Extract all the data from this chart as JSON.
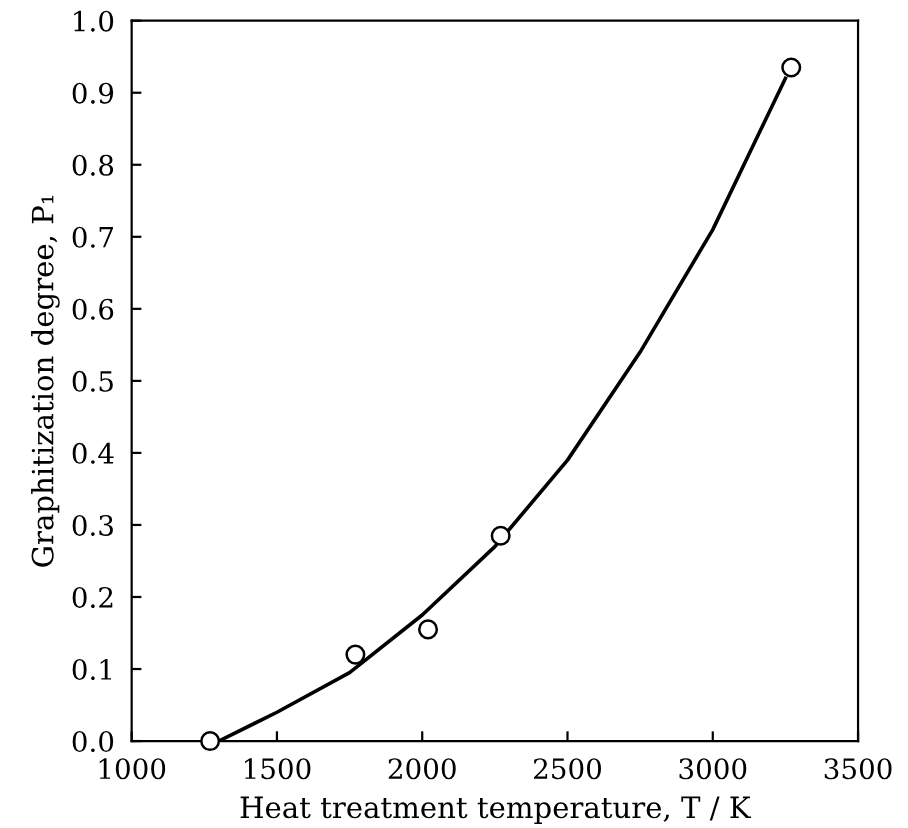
{
  "chart_data": {
    "type": "scatter",
    "xlabel": "Heat treatment temperature, T / K",
    "ylabel": "Graphitization degree, P₁",
    "xlim": [
      1000,
      3500
    ],
    "xticks": [
      1000,
      1500,
      2000,
      2500,
      3000,
      3500
    ],
    "ylim": [
      0,
      1.0
    ],
    "yticks": [
      {
        "value": 0,
        "label": "0.0"
      },
      0.1,
      0.2,
      0.3,
      0.4,
      0.5,
      0.6,
      0.7,
      0.8,
      0.9,
      {
        "value": 1.0,
        "label": "1.0"
      }
    ],
    "grid": false,
    "legend": false,
    "series": [
      {
        "color": "#000000",
        "marker": "circle",
        "x": [
          1270,
          1770,
          2020,
          2270,
          3270
        ],
        "values": [
          0.0,
          0.12,
          0.155,
          0.285,
          0.935
        ]
      },
      {
        "type": "line",
        "color": "#000000",
        "marker": "none",
        "line_style": "solid",
        "x": [
          1300,
          1500,
          1750,
          2000,
          2250,
          2500,
          2750,
          3000,
          3250
        ],
        "values": [
          0.0,
          0.04,
          0.095,
          0.175,
          0.27,
          0.39,
          0.54,
          0.71,
          0.92
        ]
      }
    ]
  }
}
